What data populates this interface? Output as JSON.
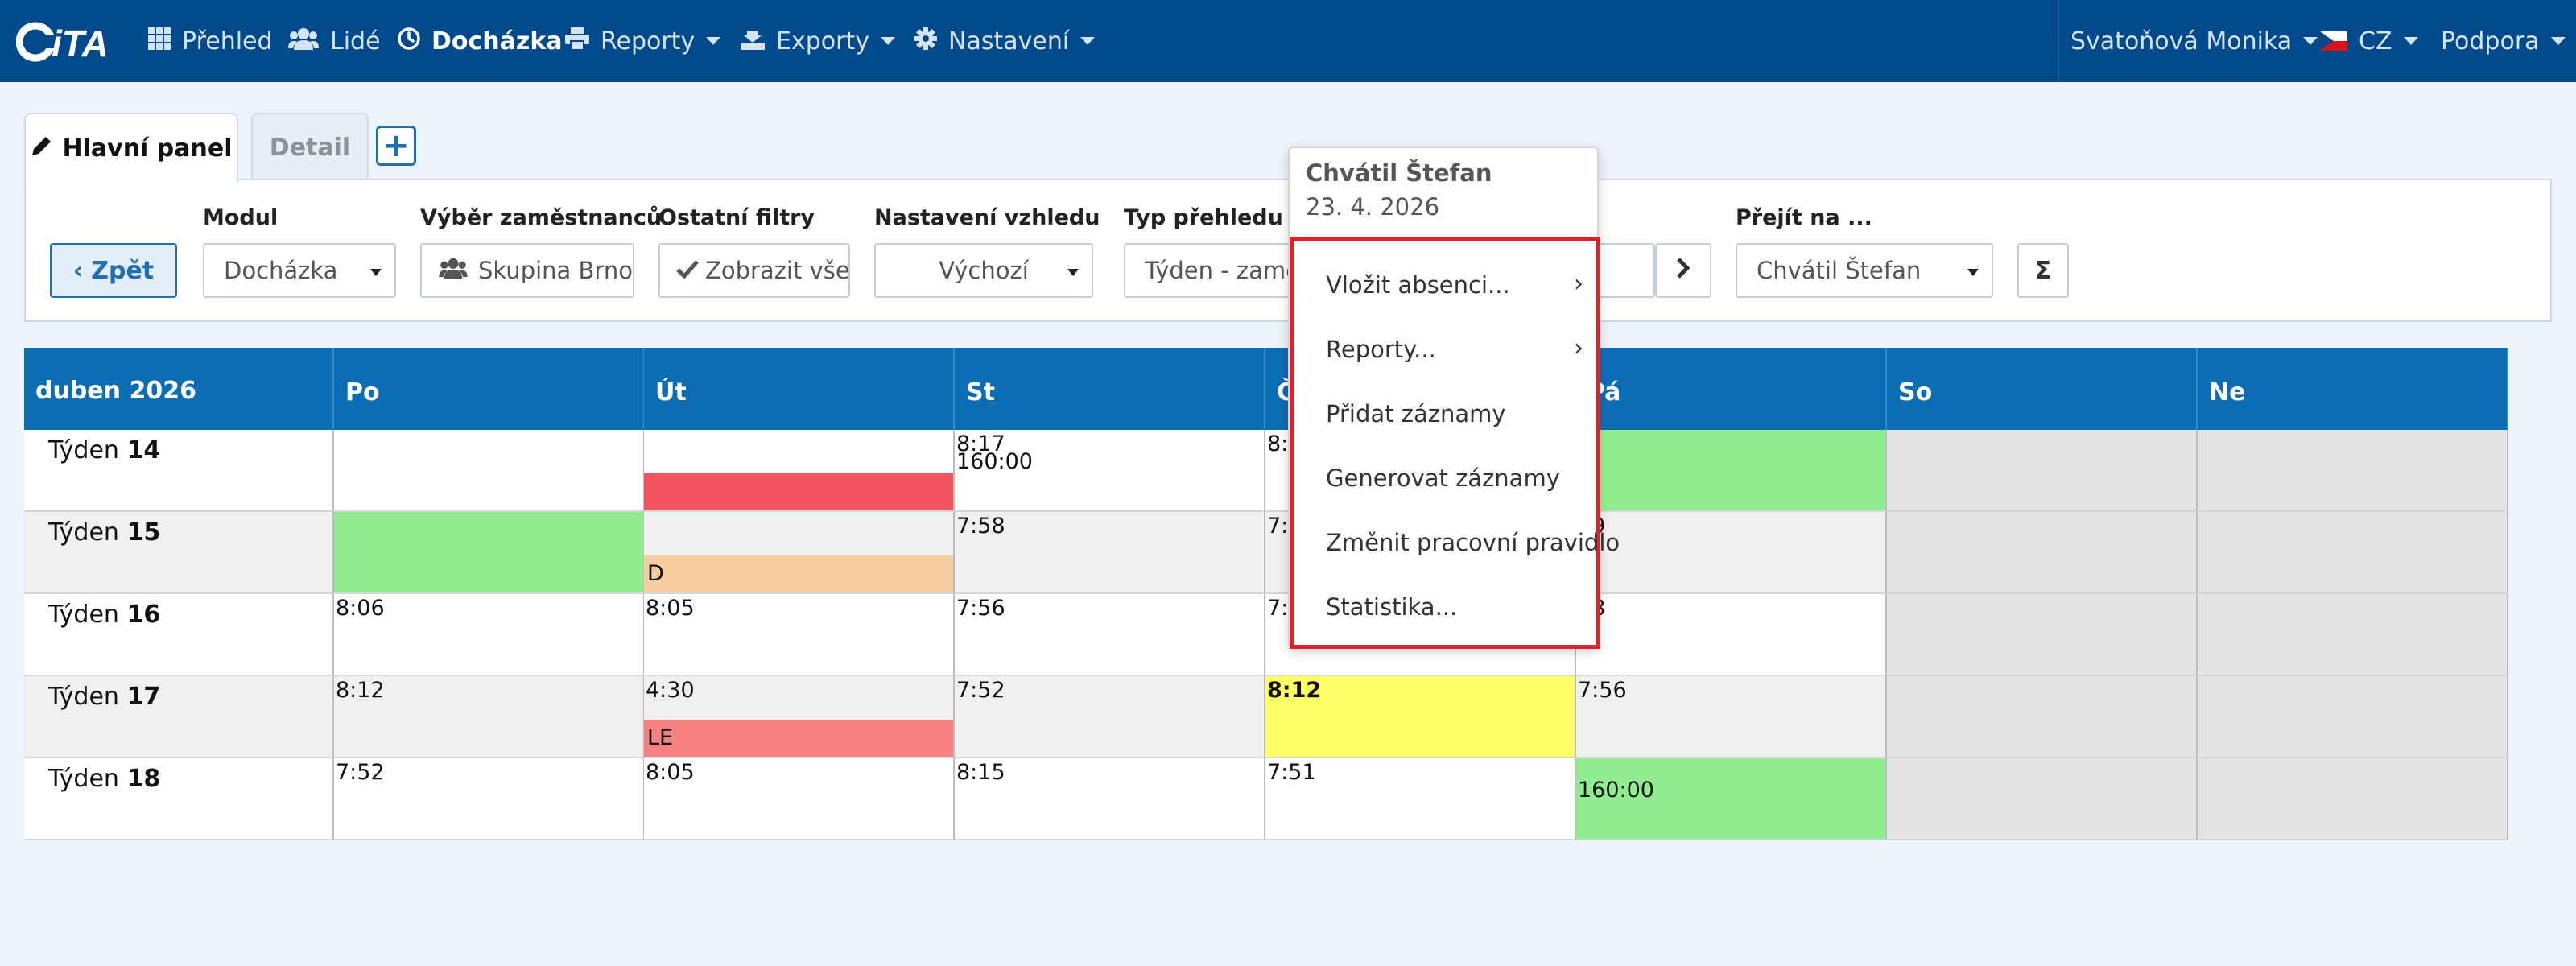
{
  "nav": {
    "logo": "iTA",
    "items": [
      {
        "label": "Přehled",
        "icon": "grid-icon"
      },
      {
        "label": "Lidé",
        "icon": "users-icon"
      },
      {
        "label": "Docházka",
        "icon": "clock-icon"
      },
      {
        "label": "Reporty",
        "icon": "printer-icon"
      },
      {
        "label": "Exporty",
        "icon": "export-icon"
      },
      {
        "label": "Nastavení",
        "icon": "gear-icon"
      }
    ],
    "user": "Svatoňová Monika",
    "language": "CZ",
    "support": "Podpora"
  },
  "tabs": {
    "main": "Hlavní panel",
    "detail": "Detail",
    "add": "+"
  },
  "filters": {
    "back": "Zpět",
    "module_label": "Modul",
    "module_value": "Docházka",
    "employees_label": "Výběr zaměstnanců",
    "employees_value": "Skupina Brno",
    "other_label": "Ostatní filtry",
    "other_value": "Zobrazit vše",
    "appearance_label": "Nastavení vzhledu",
    "appearance_value": "Výchozí",
    "view_type_label": "Typ přehledu",
    "view_type_value": "Týden - zamě",
    "goto_label": "Přejít na ...",
    "goto_value": "Chvátil Štefan",
    "sigma": "Σ"
  },
  "calendar": {
    "month": "duben 2026",
    "days": [
      "Po",
      "Út",
      "St",
      "Čt",
      "Pá",
      "So",
      "Ne"
    ],
    "week_prefix": "Týden",
    "weeks": [
      {
        "number": "14",
        "cells": [
          {},
          {
            "bar": ""
          },
          {
            "t1": "8:17",
            "t2": "160:00"
          },
          {
            "t1": "8:"
          },
          {
            "t1": ""
          },
          {},
          {}
        ]
      },
      {
        "number": "15",
        "cells": [
          {},
          {
            "bar": "D"
          },
          {
            "t1": "7:58"
          },
          {
            "t1": "7:"
          },
          {
            "t1": "39"
          },
          {},
          {}
        ]
      },
      {
        "number": "16",
        "cells": [
          {
            "t1": "8:06"
          },
          {
            "t1": "8:05"
          },
          {
            "t1": "7:56"
          },
          {
            "t1": "7:"
          },
          {
            "t1": "48"
          },
          {},
          {}
        ]
      },
      {
        "number": "17",
        "cells": [
          {
            "t1": "8:12"
          },
          {
            "t1": "4:30",
            "bar": "LE"
          },
          {
            "t1": "7:52"
          },
          {
            "t1": "8:12"
          },
          {
            "t1": "7:56"
          },
          {},
          {}
        ]
      },
      {
        "number": "18",
        "cells": [
          {
            "t1": "7:52"
          },
          {
            "t1": "8:05"
          },
          {
            "t1": "8:15"
          },
          {
            "t1": "7:51"
          },
          {
            "t2": "160:00"
          },
          {},
          {}
        ]
      }
    ]
  },
  "popup": {
    "name": "Chvátil Štefan",
    "date": "23. 4. 2026",
    "items": [
      {
        "label": "Vložit absenci...",
        "submenu": "›"
      },
      {
        "label": "Reporty...",
        "submenu": "›"
      },
      {
        "label": "Přidat záznamy"
      },
      {
        "label": "Generovat záznamy"
      },
      {
        "label": "Změnit pracovní pravidlo"
      },
      {
        "label": "Statistika..."
      }
    ]
  }
}
